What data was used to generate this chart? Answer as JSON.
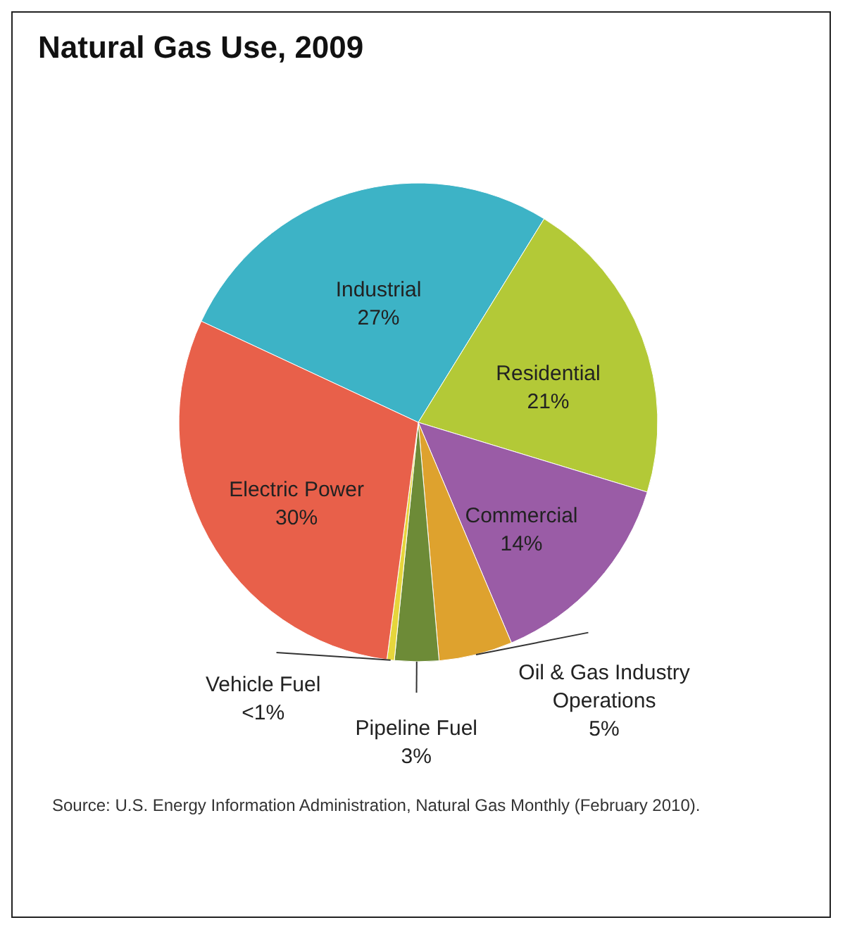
{
  "chart_data": {
    "type": "pie",
    "title": "Natural Gas Use, 2009",
    "categories": [
      "Industrial",
      "Residential",
      "Commercial",
      "Oil & Gas Industry Operations",
      "Pipeline Fuel",
      "Vehicle Fuel",
      "Electric Power"
    ],
    "values": [
      27,
      21,
      14,
      5,
      3,
      0.5,
      30
    ],
    "value_labels": [
      "27%",
      "21%",
      "14%",
      "5%",
      "3%",
      "<1%",
      "30%"
    ],
    "colors": [
      "#3db3c6",
      "#b3c937",
      "#9a5ca6",
      "#dea22e",
      "#6d8b37",
      "#e6d63c",
      "#e8604a"
    ],
    "legend": false,
    "annotations": [
      "Source: U.S. Energy Information Administration, Natural Gas Monthly (February 2010)."
    ]
  }
}
